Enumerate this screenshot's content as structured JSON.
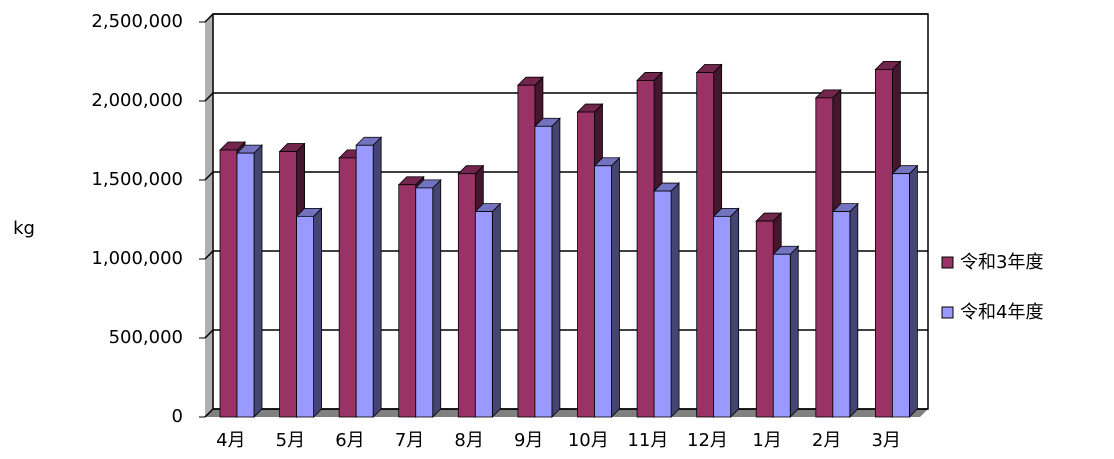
{
  "chart_data": {
    "type": "bar",
    "y_label": "kg",
    "categories": [
      "4月",
      "5月",
      "6月",
      "7月",
      "8月",
      "9月",
      "10月",
      "11月",
      "12月",
      "1月",
      "2月",
      "3月"
    ],
    "series": [
      {
        "name": "令和3年度",
        "color": "#993366",
        "values": [
          1690000,
          1680000,
          1640000,
          1470000,
          1540000,
          2100000,
          1930000,
          2130000,
          2180000,
          1240000,
          2020000,
          2200000
        ]
      },
      {
        "name": "令和4年度",
        "color": "#9999ff",
        "values": [
          1670000,
          1270000,
          1720000,
          1450000,
          1300000,
          1840000,
          1590000,
          1430000,
          1270000,
          1030000,
          1300000,
          1540000
        ]
      }
    ],
    "ylim": [
      0,
      2500000
    ],
    "yticks": [
      0,
      {
        "value": 500000,
        "label": "500,000"
      },
      {
        "value": 1000000,
        "label": "1,000,000"
      },
      {
        "value": 1500000,
        "label": "1,500,000"
      },
      {
        "value": 2000000,
        "label": "2,000,000"
      },
      {
        "value": 2500000,
        "label": "2,500,000"
      }
    ],
    "grid": true,
    "legend": "right"
  }
}
